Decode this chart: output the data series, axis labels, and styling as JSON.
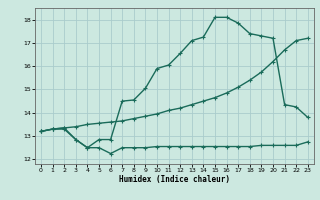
{
  "xlabel": "Humidex (Indice chaleur)",
  "bg_color": "#cce8e0",
  "grid_color": "#aacccc",
  "line_color": "#1a6b5a",
  "xlim": [
    -0.5,
    23.5
  ],
  "ylim": [
    11.8,
    18.5
  ],
  "xticks": [
    0,
    1,
    2,
    3,
    4,
    5,
    6,
    7,
    8,
    9,
    10,
    11,
    12,
    13,
    14,
    15,
    16,
    17,
    18,
    19,
    20,
    21,
    22,
    23
  ],
  "yticks": [
    12,
    13,
    14,
    15,
    16,
    17,
    18
  ],
  "line1_x": [
    0,
    1,
    2,
    3,
    4,
    5,
    6,
    7,
    8,
    9,
    10,
    11,
    12,
    13,
    14,
    15,
    16,
    17,
    18,
    19,
    20,
    21,
    22,
    23
  ],
  "line1_y": [
    13.2,
    13.3,
    13.3,
    12.85,
    12.5,
    12.5,
    12.25,
    12.5,
    12.5,
    12.5,
    12.55,
    12.55,
    12.55,
    12.55,
    12.55,
    12.55,
    12.55,
    12.55,
    12.55,
    12.6,
    12.6,
    12.6,
    12.6,
    12.75
  ],
  "line2_x": [
    0,
    1,
    2,
    3,
    4,
    5,
    6,
    7,
    8,
    9,
    10,
    11,
    12,
    13,
    14,
    15,
    16,
    17,
    18,
    19,
    20,
    21,
    22,
    23
  ],
  "line2_y": [
    13.2,
    13.3,
    13.35,
    13.4,
    13.5,
    13.55,
    13.6,
    13.65,
    13.75,
    13.85,
    13.95,
    14.1,
    14.2,
    14.35,
    14.5,
    14.65,
    14.85,
    15.1,
    15.4,
    15.75,
    16.2,
    16.7,
    17.1,
    17.2
  ],
  "line3_x": [
    0,
    1,
    2,
    3,
    4,
    5,
    6,
    7,
    8,
    9,
    10,
    11,
    12,
    13,
    14,
    15,
    16,
    17,
    18,
    19,
    20,
    21,
    22,
    23
  ],
  "line3_y": [
    13.2,
    13.3,
    13.35,
    12.85,
    12.5,
    12.85,
    12.85,
    14.5,
    14.55,
    15.05,
    15.9,
    16.05,
    16.55,
    17.1,
    17.25,
    18.1,
    18.1,
    17.85,
    17.4,
    17.3,
    17.2,
    14.35,
    14.25,
    13.8
  ]
}
